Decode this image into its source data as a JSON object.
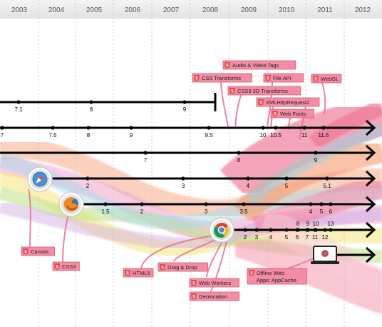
{
  "colors": {
    "axis_bg": "#e9e9e9",
    "axis_text": "#555555",
    "grid": "#bdbdbd",
    "line": "#000000",
    "label_bg": "#f48ca4",
    "label_border": "#d85a7a",
    "label_text": "#222222",
    "badge_bg": "#e54b4b",
    "leader": "#e8708f"
  },
  "years": [
    "2003",
    "2004",
    "2005",
    "2006",
    "2007",
    "2008",
    "2009",
    "2010",
    "2011",
    "2012"
  ],
  "releases": [
    {
      "id": "ie-old",
      "ticks": [
        "7.1",
        "8",
        "9"
      ],
      "end": "bar",
      "icon": ""
    },
    {
      "id": "ie",
      "ticks": [
        "7",
        "7.5",
        "8",
        "9",
        "9.5",
        "10",
        "10.5",
        "11",
        "11.5"
      ],
      "end": "arrow",
      "icon": ""
    },
    {
      "id": "opera",
      "ticks": [
        "7",
        "8",
        "9"
      ],
      "end": "arrow",
      "icon": ""
    },
    {
      "id": "safari",
      "ticks": [
        "2",
        "3",
        "4",
        "5",
        "5.1"
      ],
      "end": "arrow",
      "icon": "safari-icon"
    },
    {
      "id": "firefox",
      "ticks": [
        "1.5",
        "2",
        "3",
        "3.5",
        "4",
        "5",
        "6"
      ],
      "end": "arrow",
      "icon": "firefox-icon"
    },
    {
      "id": "chrome",
      "ticks": [
        "2",
        "3",
        "4",
        "5",
        "6",
        "7",
        "8",
        "9",
        "10",
        "11",
        "12",
        "13"
      ],
      "end": "arrow",
      "icon": "chrome-icon"
    },
    {
      "id": "chrome-os",
      "ticks": [],
      "end": "arrow",
      "icon": "laptop-icon"
    }
  ],
  "features": [
    "Audio & Video Tags",
    "CSS Transforms",
    "File API",
    "WebGL",
    "CSS3 3D Transforms",
    "XMLHttpRequest2",
    "Web Fonts",
    "Canvas",
    "CSS3",
    "HTML5",
    "Drag & Drop",
    "Web Workers",
    "Geolocation",
    "Offline Web Apps: AppCache"
  ]
}
